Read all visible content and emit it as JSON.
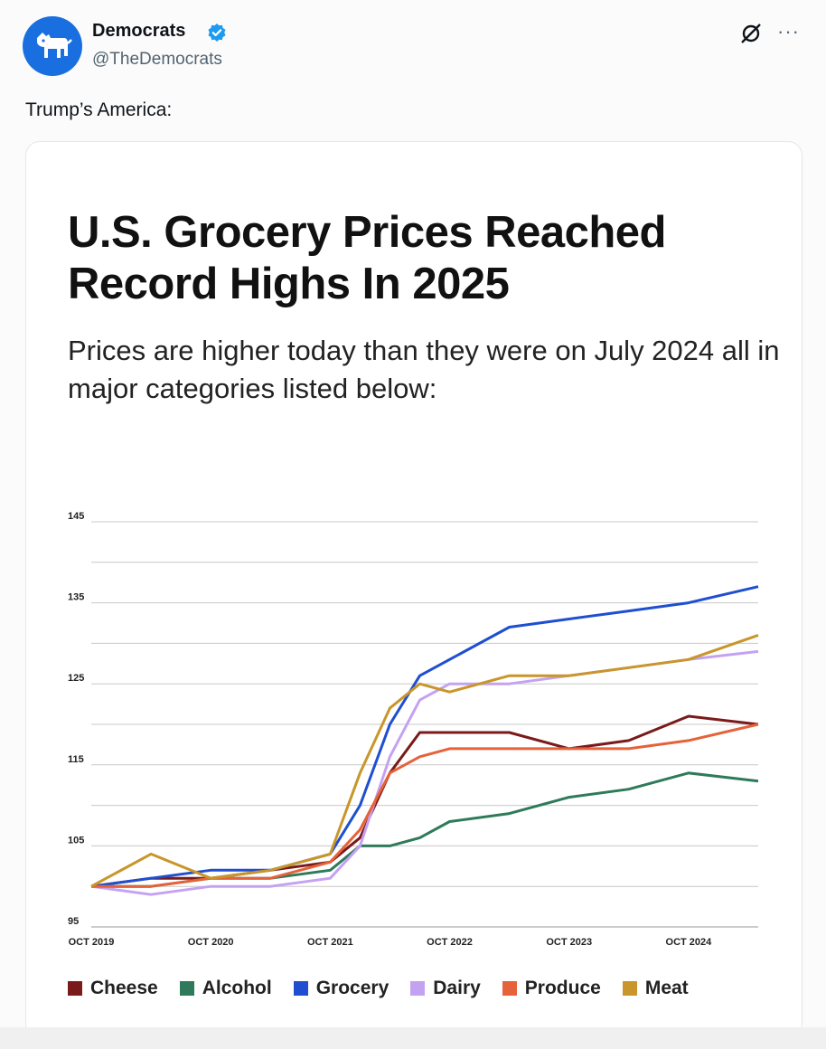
{
  "post": {
    "author_name": "Democrats",
    "author_handle": "@TheDemocrats",
    "text": "Trump’s America:",
    "icons": {
      "avatar": "democratic-donkey-icon",
      "verified": "verified-badge-icon",
      "grok": "grok-icon",
      "more": "more-options-icon"
    },
    "more_label": "···"
  },
  "card": {
    "title": "U.S. Grocery Prices Reached Record Highs In 2025",
    "subtitle": "Prices are higher today than they were on July 2024 all in major categories listed below:"
  },
  "colors": {
    "accent": "#1d9bf0",
    "avatar_bg": "#1a6fe0",
    "cheese": "#7a1a1a",
    "alcohol": "#2e7a5a",
    "grocery": "#1f4fd0",
    "dairy": "#c4a2f2",
    "produce": "#e5623a",
    "meat": "#c8962a"
  },
  "chart_data": {
    "type": "line",
    "x": [
      "OCT 2019",
      "APR 2020",
      "OCT 2020",
      "APR 2021",
      "OCT 2021",
      "JAN 2022",
      "APR 2022",
      "JUL 2022",
      "OCT 2022",
      "APR 2023",
      "OCT 2023",
      "APR 2024",
      "OCT 2024",
      "MAY 2025"
    ],
    "xticks": [
      "OCT 2019",
      "OCT 2020",
      "OCT 2021",
      "OCT 2022",
      "OCT 2023",
      "OCT 2024"
    ],
    "yticks": [
      95,
      105,
      115,
      125,
      135,
      145
    ],
    "ylim": [
      95,
      145
    ],
    "grid": true,
    "legend_position": "bottom",
    "series": [
      {
        "name": "Cheese",
        "values": [
          100,
          101,
          101,
          102,
          103,
          106,
          114,
          119,
          119,
          119,
          117,
          118,
          121,
          120
        ]
      },
      {
        "name": "Alcohol",
        "values": [
          100,
          100,
          101,
          101,
          102,
          105,
          105,
          106,
          108,
          109,
          111,
          112,
          114,
          113
        ]
      },
      {
        "name": "Grocery",
        "values": [
          100,
          101,
          102,
          102,
          104,
          110,
          120,
          126,
          128,
          132,
          133,
          134,
          135,
          137
        ]
      },
      {
        "name": "Dairy",
        "values": [
          100,
          99,
          100,
          100,
          101,
          105,
          116,
          123,
          125,
          125,
          126,
          127,
          128,
          129
        ]
      },
      {
        "name": "Produce",
        "values": [
          100,
          100,
          101,
          101,
          103,
          107,
          114,
          116,
          117,
          117,
          117,
          117,
          118,
          120
        ]
      },
      {
        "name": "Meat",
        "values": [
          100,
          104,
          101,
          102,
          104,
          114,
          122,
          125,
          124,
          126,
          126,
          127,
          128,
          131
        ]
      }
    ]
  }
}
